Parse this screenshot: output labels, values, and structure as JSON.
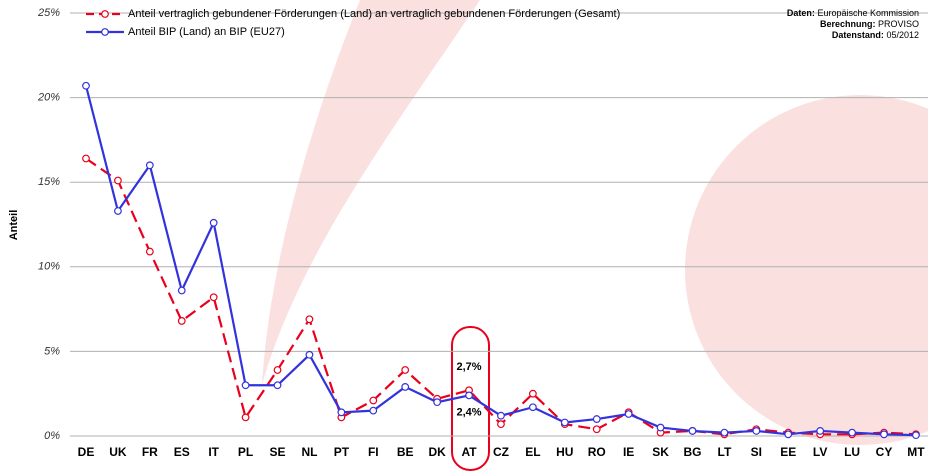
{
  "chart_data": {
    "type": "line",
    "y_label": "Anteil",
    "source": [
      {
        "label": "Daten:",
        "value": "Europäische Kommission"
      },
      {
        "label": "Berechnung:",
        "value": "PROVISO"
      },
      {
        "label": "Datenstand:",
        "value": "05/2012"
      }
    ],
    "categories": [
      "DE",
      "UK",
      "FR",
      "ES",
      "IT",
      "PL",
      "SE",
      "NL",
      "PT",
      "FI",
      "BE",
      "DK",
      "AT",
      "CZ",
      "EL",
      "HU",
      "RO",
      "IE",
      "SK",
      "BG",
      "LT",
      "SI",
      "EE",
      "LV",
      "LU",
      "CY",
      "MT"
    ],
    "series": [
      {
        "name": "Anteil vertraglich gebundener Förderungen (Land) an vertraglich gebundenen Förderungen (Gesamt)",
        "color": "#e8001c",
        "line_style": "dashed",
        "values": [
          16.4,
          15.1,
          10.9,
          6.8,
          8.2,
          1.1,
          3.9,
          6.9,
          1.1,
          2.1,
          3.9,
          2.2,
          2.7,
          0.7,
          2.5,
          0.7,
          0.4,
          1.4,
          0.2,
          0.3,
          0.1,
          0.4,
          0.2,
          0.1,
          0.1,
          0.2,
          0.1
        ],
        "value_labels": [
          null,
          null,
          null,
          null,
          null,
          null,
          null,
          null,
          null,
          null,
          null,
          null,
          "2,7%",
          null,
          null,
          null,
          null,
          null,
          null,
          null,
          null,
          null,
          null,
          null,
          null,
          null,
          null
        ]
      },
      {
        "name": "Anteil BIP (Land) an BIP (EU27)",
        "color": "#3333dd",
        "line_style": "solid",
        "values": [
          20.7,
          13.3,
          16.0,
          8.6,
          12.6,
          3.0,
          3.0,
          4.8,
          1.4,
          1.5,
          2.9,
          2.0,
          2.4,
          1.2,
          1.7,
          0.8,
          1.0,
          1.3,
          0.5,
          0.3,
          0.2,
          0.3,
          0.1,
          0.3,
          0.2,
          0.1,
          0.05
        ],
        "value_labels": [
          null,
          null,
          null,
          null,
          null,
          null,
          null,
          null,
          null,
          null,
          null,
          null,
          "2,4%",
          null,
          null,
          null,
          null,
          null,
          null,
          null,
          null,
          null,
          null,
          null,
          null,
          null,
          null
        ]
      }
    ],
    "ylim": [
      0,
      25
    ],
    "yticks": [
      {
        "value": 0,
        "label": "0%"
      },
      {
        "value": 5,
        "label": "5%"
      },
      {
        "value": 10,
        "label": "10%"
      },
      {
        "value": 15,
        "label": "15%"
      },
      {
        "value": 20,
        "label": "20%"
      },
      {
        "value": 25,
        "label": "25%"
      }
    ],
    "grid": true
  }
}
